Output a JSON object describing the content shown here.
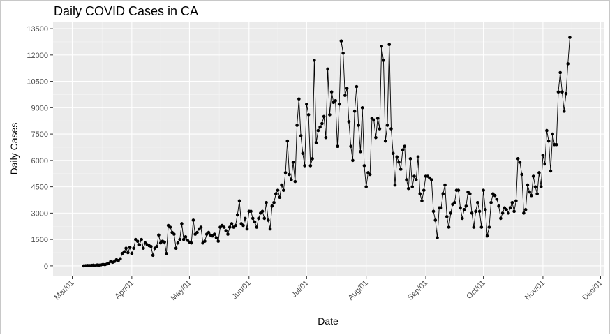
{
  "chart_data": {
    "type": "line",
    "title": "Daily COVID Cases in CA",
    "xlabel": "Date",
    "ylabel": "Daily Cases",
    "x_ticks": [
      "Mar/01",
      "Apr/01",
      "May/01",
      "Jun/01",
      "Jul/01",
      "Aug/01",
      "Sep/01",
      "Oct/01",
      "Nov/01",
      "Dec/01"
    ],
    "y_ticks": [
      0,
      1500,
      3000,
      4500,
      6000,
      7500,
      9000,
      10500,
      12000,
      13500
    ],
    "xlim": [
      "2020-02-20",
      "2020-12-03"
    ],
    "ylim": [
      -600,
      13900
    ],
    "grid": true,
    "x_start": "2020-03-07",
    "y": [
      0,
      10,
      20,
      15,
      30,
      40,
      20,
      50,
      40,
      60,
      80,
      70,
      100,
      150,
      250,
      200,
      250,
      350,
      300,
      400,
      700,
      800,
      1000,
      750,
      1050,
      700,
      1000,
      1500,
      1400,
      1200,
      1500,
      1000,
      1300,
      1200,
      1150,
      1100,
      600,
      1000,
      1100,
      1750,
      1300,
      1400,
      1350,
      700,
      2300,
      2200,
      1900,
      1800,
      1000,
      1300,
      1500,
      2400,
      1500,
      1650,
      1450,
      1350,
      1300,
      2600,
      1800,
      1900,
      2100,
      2200,
      1300,
      1400,
      1800,
      1900,
      1750,
      1700,
      1800,
      1600,
      1400,
      2200,
      2300,
      2200,
      2000,
      1800,
      2200,
      2400,
      2200,
      2300,
      2900,
      3700,
      2400,
      2300,
      2700,
      2100,
      3100,
      3100,
      2700,
      2500,
      2200,
      2700,
      3000,
      3100,
      2700,
      3600,
      2600,
      2100,
      3400,
      3600,
      4100,
      4300,
      3900,
      4600,
      4300,
      5300,
      7100,
      5200,
      4900,
      5900,
      4800,
      8000,
      9500,
      7400,
      6400,
      5700,
      9200,
      8600,
      5700,
      6100,
      11700,
      7000,
      7700,
      7900,
      8100,
      8500,
      7300,
      11200,
      8600,
      9900,
      9300,
      9400,
      6800,
      9200,
      12800,
      12100,
      9700,
      10100,
      8200,
      6800,
      6000,
      8800,
      10200,
      8000,
      6500,
      9000,
      5700,
      4500,
      5300,
      5200,
      8400,
      8300,
      7300,
      8400,
      7800,
      12500,
      11700,
      7100,
      8000,
      12600,
      7800,
      6400,
      4600,
      6200,
      5900,
      5500,
      6600,
      6800,
      4900,
      4400,
      6100,
      4500,
      5100,
      4900,
      6200,
      4100,
      3700,
      4300,
      5100,
      5100,
      5000,
      4900,
      3100,
      2600,
      1600,
      3300,
      3300,
      4100,
      4600,
      2800,
      2200,
      3000,
      3500,
      3600,
      4300,
      4300,
      3300,
      2700,
      3200,
      3400,
      4200,
      4100,
      3000,
      2200,
      3100,
      3600,
      3100,
      2200,
      4300,
      3200,
      1700,
      2200,
      3600,
      4100,
      4000,
      3800,
      3400,
      2700,
      3000,
      3300,
      3200,
      3000,
      3300,
      3600,
      3100,
      3700,
      6100,
      5900,
      5200,
      3000,
      3200,
      4600,
      4200,
      4000,
      5100,
      4500,
      4100,
      5300,
      4500,
      6300,
      5800,
      7700,
      7100,
      5400,
      7500,
      6900,
      6900,
      9900,
      11000,
      9900,
      8800,
      9800,
      11500,
      13000
    ]
  }
}
